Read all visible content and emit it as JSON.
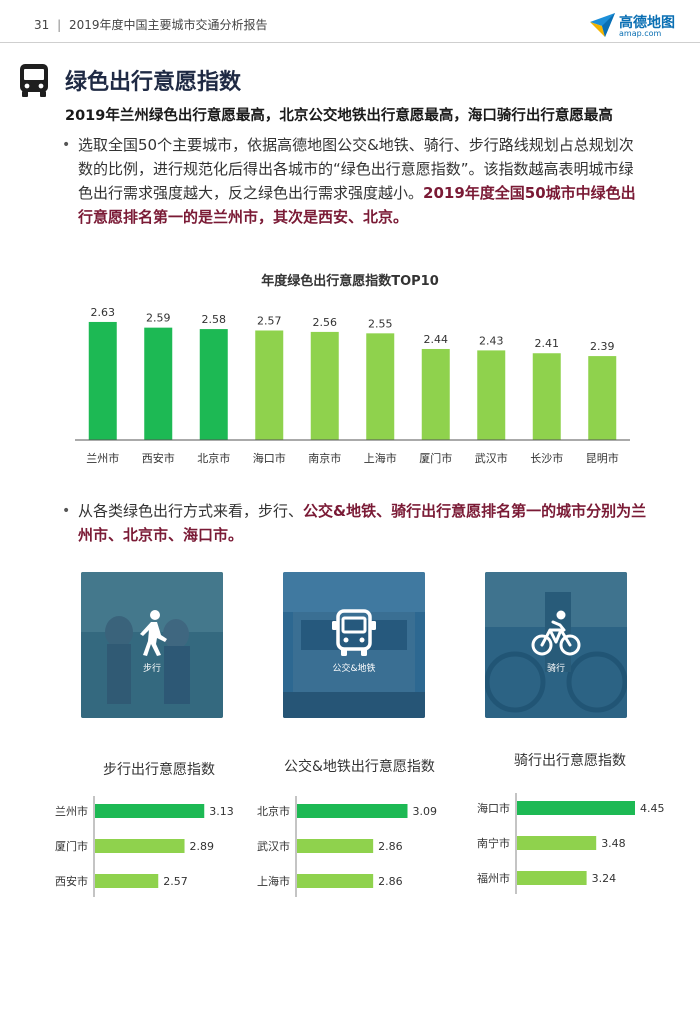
{
  "header": {
    "page_number": "31",
    "separator": "|",
    "report_title": "2019年度中国主要城市交通分析报告"
  },
  "logo": {
    "name": "高德地图",
    "url": "amap.com",
    "icon": "amap-logo-icon"
  },
  "section": {
    "icon": "bus-icon",
    "title": "绿色出行意愿指数",
    "subtitle": "2019年兰州绿色出行意愿最高，北京公交地铁出行意愿最高，海口骑行出行意愿最高"
  },
  "paragraph1": {
    "bullet": "•",
    "text": "选取全国50个主要城市，依据高德地图公交&地铁、骑行、步行路线规划占总规划次数的比例，进行规范化后得出各城市的“绿色出行意愿指数”。该指数越高表明城市绿色出行需求强度越大，反之绿色出行需求强度越小。",
    "emphasis": "2019年度全国50城市中绿色出行意愿排名第一的是兰州市，其次是西安、北京。"
  },
  "paragraph2": {
    "bullet": "•",
    "text": "从各类绿色出行方式来看，步行、",
    "emphasis": "公交&地铁、骑行出行意愿排名第一的城市分别为兰州市、北京市、海口市。"
  },
  "cards": [
    {
      "label": "步行",
      "icon": "walking-person-icon"
    },
    {
      "label": "公交&地铁",
      "icon": "bus-front-icon"
    },
    {
      "label": "骑行",
      "icon": "bicycle-icon"
    }
  ],
  "colors": {
    "dark_green": "#1db954",
    "light_green": "#8fd24d",
    "title_navy": "#1f2a44",
    "emphasis": "#7a1a35"
  },
  "chart_data": [
    {
      "type": "bar",
      "title": "年度绿色出行意愿指数TOP10",
      "categories": [
        "兰州市",
        "西安市",
        "北京市",
        "海口市",
        "南京市",
        "上海市",
        "厦门市",
        "武汉市",
        "长沙市",
        "昆明市"
      ],
      "values": [
        2.63,
        2.59,
        2.58,
        2.57,
        2.56,
        2.55,
        2.44,
        2.43,
        2.41,
        2.39
      ],
      "value_labels": [
        "2.63",
        "2.59",
        "2.58",
        "2.57",
        "2.56",
        "2.55",
        "2.44",
        "2.43",
        "2.41",
        "2.39"
      ],
      "highlight_top": 3,
      "ylim": [
        1.8,
        2.7
      ]
    },
    {
      "type": "bar",
      "orientation": "horizontal",
      "title": "步行出行意愿指数",
      "categories": [
        "兰州市",
        "厦门市",
        "西安市"
      ],
      "values": [
        3.13,
        2.89,
        2.57
      ],
      "value_labels": [
        "3.13",
        "2.89",
        "2.57"
      ],
      "xlim": [
        1.8,
        3.2
      ]
    },
    {
      "type": "bar",
      "orientation": "horizontal",
      "title": "公交&地铁出行意愿指数",
      "categories": [
        "北京市",
        "武汉市",
        "上海市"
      ],
      "values": [
        3.09,
        2.86,
        2.86
      ],
      "value_labels": [
        "3.09",
        "2.86",
        "2.86"
      ],
      "xlim": [
        2.35,
        3.1
      ]
    },
    {
      "type": "bar",
      "orientation": "horizontal",
      "title": "骑行出行意愿指数",
      "categories": [
        "海口市",
        "南宁市",
        "福州市"
      ],
      "values": [
        4.45,
        3.48,
        3.24
      ],
      "value_labels": [
        "4.45",
        "3.48",
        "3.24"
      ],
      "xlim": [
        1.5,
        4.5
      ]
    }
  ]
}
